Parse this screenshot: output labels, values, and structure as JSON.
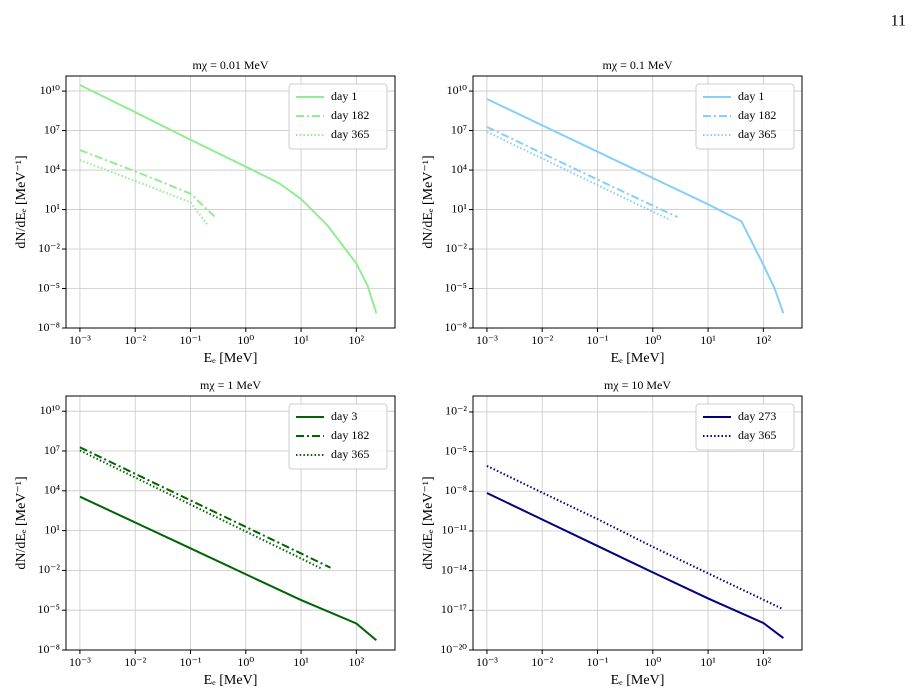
{
  "page_number": "11",
  "chart_data": [
    {
      "type": "line",
      "title": "mχ = 0.01 MeV",
      "x_label": "Eₑ [MeV]",
      "y_label": "dN/dEₑ [MeV⁻¹]",
      "xscale": "log",
      "yscale": "log",
      "grid": true,
      "legend": "upper right",
      "xlim": [
        0.00056,
        500
      ],
      "ylim": [
        1e-08,
        140000000000.0
      ],
      "xticks": [
        {
          "value": 0.001,
          "label": "10⁻³"
        },
        {
          "value": 0.01,
          "label": "10⁻²"
        },
        {
          "value": 0.1,
          "label": "10⁻¹"
        },
        {
          "value": 1,
          "label": "10⁰"
        },
        {
          "value": 10,
          "label": "10¹"
        },
        {
          "value": 100,
          "label": "10²"
        }
      ],
      "yticks": [
        {
          "value": 1e-08,
          "label": "10⁻⁸"
        },
        {
          "value": 1e-05,
          "label": "10⁻⁵"
        },
        {
          "value": 0.01,
          "label": "10⁻²"
        },
        {
          "value": 10,
          "label": "10¹"
        },
        {
          "value": 10000,
          "label": "10⁴"
        },
        {
          "value": 10000000.0,
          "label": "10⁷"
        },
        {
          "value": 10000000000.0,
          "label": "10¹⁰"
        }
      ],
      "series": [
        {
          "name": "day 1",
          "color": "#90ee90",
          "style": "solid",
          "x": [
            0.001,
            0.01,
            0.1,
            1,
            4,
            10,
            30,
            100,
            160,
            230
          ],
          "values": [
            29000000000.0,
            250000000.0,
            2000000.0,
            18000.0,
            1000,
            63,
            0.63,
            0.0008,
            1.6e-05,
            1.3e-07
          ]
        },
        {
          "name": "day 182",
          "color": "#90ee90",
          "style": "dashdot",
          "x": [
            0.001,
            0.01,
            0.1,
            0.29
          ],
          "values": [
            330000.0,
            8000,
            160,
            2.3
          ]
        },
        {
          "name": "day 365",
          "color": "#90ee90",
          "style": "dotted",
          "x": [
            0.001,
            0.01,
            0.1,
            0.21
          ],
          "values": [
            58000.0,
            1500,
            35,
            0.56
          ]
        }
      ]
    },
    {
      "type": "line",
      "title": "mχ = 0.1 MeV",
      "x_label": "Eₑ [MeV]",
      "y_label": "dN/dEₑ [MeV⁻¹]",
      "xscale": "log",
      "yscale": "log",
      "grid": true,
      "legend": "upper right",
      "xlim": [
        0.00056,
        500
      ],
      "ylim": [
        1e-08,
        140000000000.0
      ],
      "xticks": [
        {
          "value": 0.001,
          "label": "10⁻³"
        },
        {
          "value": 0.01,
          "label": "10⁻²"
        },
        {
          "value": 0.1,
          "label": "10⁻¹"
        },
        {
          "value": 1,
          "label": "10⁰"
        },
        {
          "value": 10,
          "label": "10¹"
        },
        {
          "value": 100,
          "label": "10²"
        }
      ],
      "yticks": [
        {
          "value": 1e-08,
          "label": "10⁻⁸"
        },
        {
          "value": 1e-05,
          "label": "10⁻⁵"
        },
        {
          "value": 0.01,
          "label": "10⁻²"
        },
        {
          "value": 10,
          "label": "10¹"
        },
        {
          "value": 10000,
          "label": "10⁴"
        },
        {
          "value": 10000000.0,
          "label": "10⁷"
        },
        {
          "value": 10000000000.0,
          "label": "10¹⁰"
        }
      ],
      "series": [
        {
          "name": "day 1",
          "color": "#87cefa",
          "style": "solid",
          "x": [
            0.001,
            0.01,
            0.1,
            1,
            10,
            40,
            100,
            160,
            230
          ],
          "values": [
            2500000000.0,
            25000000.0,
            250000.0,
            2500,
            25,
            1.3,
            0.00063,
            1e-05,
            1.3e-07
          ]
        },
        {
          "name": "day 182",
          "color": "#87cefa",
          "style": "dashdot",
          "x": [
            0.001,
            0.01,
            0.1,
            1,
            2.8
          ],
          "values": [
            19000000.0,
            190000.0,
            1900,
            20,
            2.7
          ]
        },
        {
          "name": "day 365",
          "color": "#87cefa",
          "style": "dotted",
          "x": [
            0.001,
            0.01,
            0.1,
            1,
            2.1
          ],
          "values": [
            8000000.0,
            76000.0,
            720,
            6.9,
            1.6
          ]
        }
      ]
    },
    {
      "type": "line",
      "title": "mχ = 1 MeV",
      "x_label": "Eₑ [MeV]",
      "y_label": "dN/dEₑ [MeV⁻¹]",
      "xscale": "log",
      "yscale": "log",
      "grid": true,
      "legend": "upper right",
      "xlim": [
        0.00056,
        500
      ],
      "ylim": [
        1e-08,
        140000000000.0
      ],
      "xticks": [
        {
          "value": 0.001,
          "label": "10⁻³"
        },
        {
          "value": 0.01,
          "label": "10⁻²"
        },
        {
          "value": 0.1,
          "label": "10⁻¹"
        },
        {
          "value": 1,
          "label": "10⁰"
        },
        {
          "value": 10,
          "label": "10¹"
        },
        {
          "value": 100,
          "label": "10²"
        }
      ],
      "yticks": [
        {
          "value": 1e-08,
          "label": "10⁻⁸"
        },
        {
          "value": 1e-05,
          "label": "10⁻⁵"
        },
        {
          "value": 0.01,
          "label": "10⁻²"
        },
        {
          "value": 10,
          "label": "10¹"
        },
        {
          "value": 10000,
          "label": "10⁴"
        },
        {
          "value": 10000000.0,
          "label": "10⁷"
        },
        {
          "value": 10000000000.0,
          "label": "10¹⁰"
        }
      ],
      "series": [
        {
          "name": "day 3",
          "color": "#006400",
          "style": "solid",
          "x": [
            0.001,
            0.01,
            0.1,
            1,
            10,
            100,
            230
          ],
          "values": [
            3600,
            41,
            0.46,
            0.0051,
            5.8e-05,
            1e-06,
            5.4e-08
          ]
        },
        {
          "name": "day 182",
          "color": "#006400",
          "style": "dashdot",
          "x": [
            0.001,
            0.01,
            0.1,
            1,
            10,
            34
          ],
          "values": [
            19000000.0,
            190000.0,
            1900,
            19,
            0.19,
            0.016
          ]
        },
        {
          "name": "day 365",
          "color": "#006400",
          "style": "dotted",
          "x": [
            0.001,
            0.01,
            0.1,
            1,
            10,
            24
          ],
          "values": [
            11000000.0,
            100000.0,
            930,
            8.5,
            0.079,
            0.013
          ]
        }
      ]
    },
    {
      "type": "line",
      "title": "mχ = 10 MeV",
      "x_label": "Eₑ [MeV]",
      "y_label": "dN/dEₑ [MeV⁻¹]",
      "xscale": "log",
      "yscale": "log",
      "grid": true,
      "legend": "upper right",
      "xlim": [
        0.00056,
        500
      ],
      "ylim": [
        1e-20,
        0.16
      ],
      "xticks": [
        {
          "value": 0.001,
          "label": "10⁻³"
        },
        {
          "value": 0.01,
          "label": "10⁻²"
        },
        {
          "value": 0.1,
          "label": "10⁻¹"
        },
        {
          "value": 1,
          "label": "10⁰"
        },
        {
          "value": 10,
          "label": "10¹"
        },
        {
          "value": 100,
          "label": "10²"
        }
      ],
      "yticks": [
        {
          "value": 1e-20,
          "label": "10⁻²⁰"
        },
        {
          "value": 1e-17,
          "label": "10⁻¹⁷"
        },
        {
          "value": 1e-14,
          "label": "10⁻¹⁴"
        },
        {
          "value": 1e-11,
          "label": "10⁻¹¹"
        },
        {
          "value": 1e-08,
          "label": "10⁻⁸"
        },
        {
          "value": 1e-05,
          "label": "10⁻⁵"
        },
        {
          "value": 0.01,
          "label": "10⁻²"
        }
      ],
      "series": [
        {
          "name": "day 273",
          "color": "#000080",
          "style": "solid",
          "x": [
            0.001,
            0.01,
            0.1,
            1,
            10,
            100,
            230
          ],
          "values": [
            7.4e-09,
            7.4e-11,
            7.4e-13,
            7.4e-15,
            7.9e-17,
            1.1e-18,
            8e-20
          ]
        },
        {
          "name": "day 365",
          "color": "#000080",
          "style": "dotted",
          "x": [
            0.001,
            0.01,
            0.1,
            1,
            10,
            100,
            220
          ],
          "values": [
            8.3e-07,
            7.9e-09,
            7.9e-11,
            6.3e-13,
            6.3e-15,
            6.3e-17,
            1.3e-17
          ]
        }
      ]
    }
  ]
}
